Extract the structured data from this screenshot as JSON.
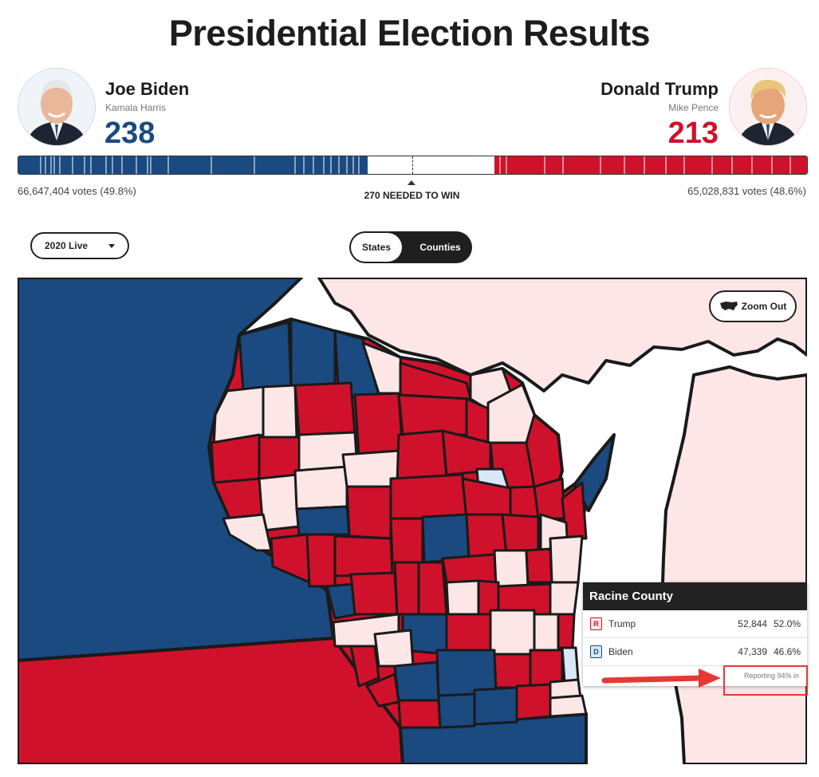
{
  "header": {
    "title": "Presidential Election Results"
  },
  "candidates": {
    "left": {
      "name": "Joe Biden",
      "running_mate": "Kamala Harris",
      "electoral_votes": "238",
      "popular_votes": "66,647,404 votes (49.8%)",
      "color": "#1a4a80"
    },
    "right": {
      "name": "Donald Trump",
      "running_mate": "Mike Pence",
      "electoral_votes": "213",
      "popular_votes": "65,028,831 votes (48.6%)",
      "color": "#d0112b"
    }
  },
  "electoral_bar": {
    "total": 538,
    "dem": 238,
    "rep": 213,
    "threshold_label": "270 NEEDED TO WIN"
  },
  "controls": {
    "year_select": "2020 Live",
    "view_toggle": [
      "States",
      "Counties"
    ],
    "active_view": "Counties",
    "zoom_label": "Zoom Out"
  },
  "map_colors": {
    "dem_won": "#1a4a80",
    "rep_won": "#d0112b",
    "dem_leading": "#d8e8f8",
    "rep_leading": "#fde6e6",
    "lake": "#ffffff",
    "border": "#1a1a1a"
  },
  "tooltip": {
    "county": "Racine County",
    "rows": [
      {
        "badge": "R",
        "candidate": "Trump",
        "votes": "52,844",
        "pct": "52.0%",
        "color": "#d0112b"
      },
      {
        "badge": "D",
        "candidate": "Biden",
        "votes": "47,339",
        "pct": "46.6%",
        "color": "#1a4a80"
      }
    ],
    "reporting": "Reporting 94% in"
  },
  "annotation": {
    "highlight_color": "#e53935"
  }
}
